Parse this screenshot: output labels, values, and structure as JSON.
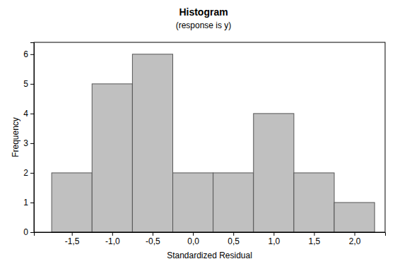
{
  "chart_data": {
    "type": "histogram",
    "title": "Histogram",
    "subtitle": "(response is y)",
    "x_label": "Standardized Residual",
    "y_label": "Frequency",
    "bins": [
      -1.75,
      -1.25,
      -0.75,
      -0.25,
      0.25,
      0.75,
      1.25,
      1.75,
      2.25
    ],
    "values": [
      2,
      5,
      6,
      2,
      2,
      4,
      2,
      1
    ],
    "color": "#c0c0c0",
    "xlim": [
      -1.97,
      2.38
    ],
    "xticks": [
      {
        "value": -1.5,
        "label": "-1,5"
      },
      {
        "value": -1.0,
        "label": "-1,0"
      },
      {
        "value": -0.5,
        "label": "-0,5"
      },
      {
        "value": 0.0,
        "label": "0,0"
      },
      {
        "value": 0.5,
        "label": "0,5"
      },
      {
        "value": 1.0,
        "label": "1,0"
      },
      {
        "value": 1.5,
        "label": "1,5"
      },
      {
        "value": 2.0,
        "label": "2,0"
      }
    ],
    "ylim": [
      0,
      6.4
    ],
    "yticks": [
      0,
      1,
      2,
      3,
      4,
      5,
      6
    ],
    "grid": false
  }
}
